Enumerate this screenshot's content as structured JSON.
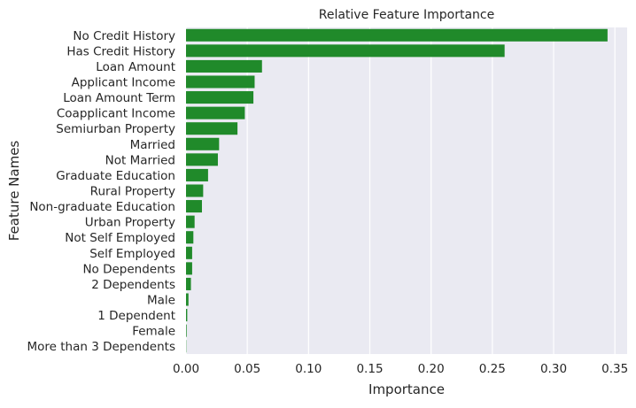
{
  "chart_data": {
    "type": "bar",
    "orientation": "horizontal",
    "title": "Relative Feature Importance",
    "xlabel": "Importance",
    "ylabel": "Feature Names",
    "xlim": [
      0,
      0.36
    ],
    "xticks": [
      "0.00",
      "0.05",
      "0.10",
      "0.15",
      "0.20",
      "0.25",
      "0.30",
      "0.35"
    ],
    "grid": true,
    "legend": "none",
    "colors": {
      "bar": "#208a2a",
      "plot_background": "#eaeaf2",
      "grid": "#ffffff"
    },
    "categories": [
      "No Credit History",
      "Has Credit History",
      "Loan Amount",
      "Applicant Income",
      "Loan Amount Term",
      "Coapplicant Income",
      "Semiurban Property",
      "Married",
      "Not Married",
      "Graduate Education",
      "Rural Property",
      "Non-graduate Education",
      "Urban Property",
      "Not Self Employed",
      "Self Employed",
      "No Dependents",
      "2 Dependents",
      "Male",
      "1 Dependent",
      "Female",
      "More than 3 Dependents"
    ],
    "values": [
      0.344,
      0.26,
      0.062,
      0.056,
      0.055,
      0.048,
      0.042,
      0.027,
      0.026,
      0.018,
      0.014,
      0.013,
      0.007,
      0.006,
      0.005,
      0.005,
      0.004,
      0.002,
      0.001,
      0.0005,
      0.0002
    ]
  }
}
